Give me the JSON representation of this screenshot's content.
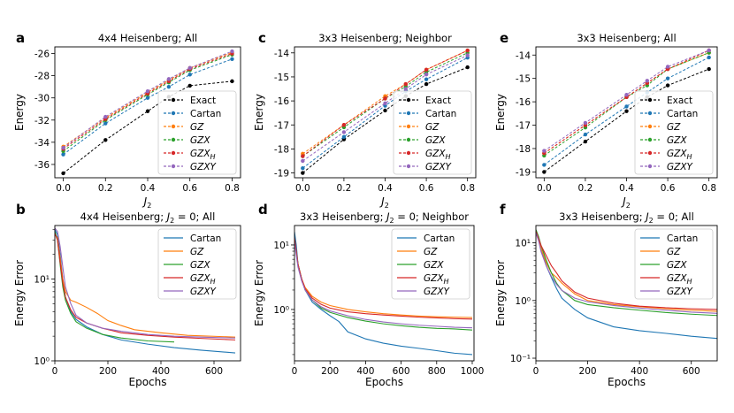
{
  "figure": {
    "panel_letters": [
      "a",
      "b",
      "c",
      "d",
      "e",
      "f"
    ]
  },
  "colors": {
    "Exact": "#000000",
    "Cartan": "#1f77b4",
    "GZ": "#ff7f0e",
    "GZX": "#2ca02c",
    "GZX_H": "#d62728",
    "GZXY": "#9467bd"
  },
  "chart_data": [
    {
      "panel": "a",
      "type": "line",
      "title": "4x4 Heisenberg; All",
      "xlabel": "J2",
      "ylabel": "Energy",
      "x": [
        0.0,
        0.2,
        0.4,
        0.5,
        0.6,
        0.8
      ],
      "xticks": [
        "0.0",
        "0.2",
        "0.4",
        "0.6",
        "0.8"
      ],
      "xtick_values": [
        0.0,
        0.2,
        0.4,
        0.6,
        0.8
      ],
      "yticks": [
        "-36",
        "-34",
        "-32",
        "-30",
        "-28",
        "-26"
      ],
      "ytick_values": [
        -36,
        -34,
        -32,
        -30,
        -28,
        -26
      ],
      "xlim": [
        -0.04,
        0.84
      ],
      "ylim": [
        -37.2,
        -25.4
      ],
      "legend": [
        "Exact",
        "Cartan",
        "GZ",
        "GZX",
        "GZX_H",
        "GZXY"
      ],
      "series": [
        {
          "name": "Exact",
          "values": [
            -36.8,
            -33.8,
            -31.2,
            -29.9,
            -28.9,
            -28.5
          ]
        },
        {
          "name": "Cartan",
          "values": [
            -35.1,
            -32.3,
            -30.0,
            -29.0,
            -27.9,
            -26.5
          ]
        },
        {
          "name": "GZ",
          "values": [
            -34.4,
            -31.8,
            -29.5,
            -28.4,
            -27.3,
            -25.9
          ]
        },
        {
          "name": "GZX",
          "values": [
            -34.8,
            -32.0,
            -29.7,
            -28.6,
            -27.5,
            -26.1
          ]
        },
        {
          "name": "GZX_H",
          "values": [
            -34.6,
            -31.9,
            -29.6,
            -28.5,
            -27.4,
            -26.0
          ]
        },
        {
          "name": "GZXY",
          "values": [
            -34.5,
            -31.7,
            -29.4,
            -28.3,
            -27.3,
            -25.8
          ]
        }
      ]
    },
    {
      "panel": "c",
      "type": "line",
      "title": "3x3 Heisenberg; Neighbor",
      "xlabel": "J2",
      "ylabel": "Energy",
      "x": [
        0.0,
        0.2,
        0.4,
        0.5,
        0.6,
        0.8
      ],
      "xticks": [
        "0.0",
        "0.2",
        "0.4",
        "0.6",
        "0.8"
      ],
      "xtick_values": [
        0.0,
        0.2,
        0.4,
        0.6,
        0.8
      ],
      "yticks": [
        "-19",
        "-18",
        "-17",
        "-16",
        "-15",
        "-14"
      ],
      "ytick_values": [
        -19,
        -18,
        -17,
        -16,
        -15,
        -14
      ],
      "xlim": [
        -0.04,
        0.84
      ],
      "ylim": [
        -19.2,
        -13.75
      ],
      "legend": [
        "Exact",
        "Cartan",
        "GZ",
        "GZX",
        "GZX_H",
        "GZXY"
      ],
      "series": [
        {
          "name": "Exact",
          "values": [
            -19.0,
            -17.6,
            -16.4,
            -15.8,
            -15.3,
            -14.6
          ]
        },
        {
          "name": "Cartan",
          "values": [
            -18.8,
            -17.5,
            -16.2,
            -15.6,
            -15.1,
            -14.2
          ]
        },
        {
          "name": "GZ",
          "values": [
            -18.2,
            -17.0,
            -15.8,
            -15.3,
            -14.7,
            -13.9
          ]
        },
        {
          "name": "GZX",
          "values": [
            -18.3,
            -17.1,
            -15.9,
            -15.4,
            -14.8,
            -14.0
          ]
        },
        {
          "name": "GZX_H",
          "values": [
            -18.3,
            -17.0,
            -15.9,
            -15.3,
            -14.7,
            -13.9
          ]
        },
        {
          "name": "GZXY",
          "values": [
            -18.5,
            -17.3,
            -16.1,
            -15.5,
            -14.9,
            -14.1
          ]
        }
      ]
    },
    {
      "panel": "e",
      "type": "line",
      "title": "3x3 Heisenberg; All",
      "xlabel": "J2",
      "ylabel": "Energy",
      "x": [
        0.0,
        0.2,
        0.4,
        0.5,
        0.6,
        0.8
      ],
      "xticks": [
        "0.0",
        "0.2",
        "0.4",
        "0.6",
        "0.8"
      ],
      "xtick_values": [
        0.0,
        0.2,
        0.4,
        0.6,
        0.8
      ],
      "yticks": [
        "-19",
        "-18",
        "-17",
        "-16",
        "-15",
        "-14"
      ],
      "ytick_values": [
        -19,
        -18,
        -17,
        -16,
        -15,
        -14
      ],
      "xlim": [
        -0.04,
        0.84
      ],
      "ylim": [
        -19.25,
        -13.65
      ],
      "legend": [
        "Exact",
        "Cartan",
        "GZ",
        "GZX",
        "GZX_H",
        "GZXY"
      ],
      "series": [
        {
          "name": "Exact",
          "values": [
            -19.0,
            -17.7,
            -16.4,
            -15.8,
            -15.3,
            -14.6
          ]
        },
        {
          "name": "Cartan",
          "values": [
            -18.7,
            -17.4,
            -16.2,
            -15.6,
            -15.0,
            -14.1
          ]
        },
        {
          "name": "GZ",
          "values": [
            -18.2,
            -17.0,
            -15.8,
            -15.2,
            -14.6,
            -13.9
          ]
        },
        {
          "name": "GZX",
          "values": [
            -18.3,
            -17.1,
            -15.8,
            -15.3,
            -14.6,
            -13.9
          ]
        },
        {
          "name": "GZX_H",
          "values": [
            -18.2,
            -17.0,
            -15.8,
            -15.2,
            -14.6,
            -13.8
          ]
        },
        {
          "name": "GZXY",
          "values": [
            -18.1,
            -16.9,
            -15.7,
            -15.1,
            -14.5,
            -13.8
          ]
        }
      ]
    },
    {
      "panel": "b",
      "type": "line",
      "yscale": "log",
      "title": "4x4 Heisenberg;  J2 = 0;  All",
      "xlabel": "Epochs",
      "ylabel": "Energy Error",
      "xticks": [
        "0",
        "200",
        "400",
        "600"
      ],
      "xtick_values": [
        0,
        200,
        400,
        600
      ],
      "yticks": [
        "10⁰",
        "10¹"
      ],
      "ytick_values": [
        1,
        10
      ],
      "xlim": [
        0,
        700
      ],
      "ylim": [
        1,
        45
      ],
      "legend": [
        "Cartan",
        "GZ",
        "GZX",
        "GZX_H",
        "GZXY"
      ],
      "series": [
        {
          "name": "Cartan",
          "x": [
            0,
            10,
            20,
            30,
            40,
            60,
            80,
            120,
            180,
            250,
            350,
            450,
            550,
            680
          ],
          "values": [
            40,
            35,
            20,
            10,
            6,
            4,
            3.2,
            2.6,
            2.1,
            1.8,
            1.6,
            1.45,
            1.35,
            1.25
          ]
        },
        {
          "name": "GZ",
          "x": [
            0,
            10,
            20,
            30,
            40,
            60,
            80,
            120,
            160,
            200,
            250,
            300,
            400,
            500,
            680
          ],
          "values": [
            35,
            32,
            18,
            10,
            7,
            5.5,
            5.2,
            4.5,
            3.8,
            3.1,
            2.7,
            2.4,
            2.2,
            2.05,
            1.95
          ]
        },
        {
          "name": "GZX",
          "x": [
            0,
            10,
            20,
            30,
            40,
            60,
            80,
            120,
            180,
            250,
            350,
            450
          ],
          "values": [
            38,
            30,
            15,
            8,
            5.5,
            3.8,
            3.0,
            2.5,
            2.1,
            1.9,
            1.75,
            1.7
          ]
        },
        {
          "name": "GZX_H",
          "x": [
            0,
            10,
            20,
            30,
            40,
            60,
            80,
            120,
            180,
            250,
            350,
            450,
            550,
            680
          ],
          "values": [
            36,
            30,
            16,
            9,
            6,
            4.2,
            3.4,
            2.9,
            2.5,
            2.2,
            2.05,
            1.95,
            1.88,
            1.8
          ]
        },
        {
          "name": "GZXY",
          "x": [
            0,
            10,
            20,
            30,
            40,
            60,
            80,
            120,
            180,
            250,
            350,
            450,
            550,
            680
          ],
          "values": [
            42,
            38,
            25,
            14,
            8,
            5,
            3.6,
            2.9,
            2.5,
            2.3,
            2.1,
            2.0,
            1.95,
            1.9
          ]
        }
      ]
    },
    {
      "panel": "d",
      "type": "line",
      "yscale": "log",
      "title": "3x3 Heisenberg;  J2 = 0;  Neighbor",
      "xlabel": "Epochs",
      "ylabel": "Energy Error",
      "xticks": [
        "0",
        "200",
        "400",
        "600",
        "800",
        "1000"
      ],
      "xtick_values": [
        0,
        200,
        400,
        600,
        800,
        1000
      ],
      "yticks": [
        "10⁰",
        "10¹"
      ],
      "ytick_values": [
        1,
        10
      ],
      "xlim": [
        0,
        1010
      ],
      "ylim": [
        0.16,
        20
      ],
      "legend": [
        "Cartan",
        "GZ",
        "GZX",
        "GZX_H",
        "GZXY"
      ],
      "series": [
        {
          "name": "Cartan",
          "x": [
            0,
            10,
            20,
            40,
            60,
            100,
            150,
            200,
            250,
            300,
            400,
            500,
            600,
            700,
            800,
            900,
            1000
          ],
          "values": [
            16,
            10,
            5,
            3,
            2,
            1.3,
            1.0,
            0.8,
            0.65,
            0.45,
            0.35,
            0.3,
            0.27,
            0.25,
            0.23,
            0.21,
            0.2
          ]
        },
        {
          "name": "GZ",
          "x": [
            0,
            10,
            20,
            40,
            60,
            100,
            150,
            200,
            300,
            400,
            500,
            600,
            700,
            800,
            900,
            1000
          ],
          "values": [
            12,
            8,
            5,
            3,
            2.2,
            1.6,
            1.3,
            1.15,
            1.0,
            0.92,
            0.86,
            0.82,
            0.79,
            0.77,
            0.76,
            0.75
          ]
        },
        {
          "name": "GZX",
          "x": [
            0,
            10,
            20,
            40,
            60,
            100,
            150,
            200,
            300,
            400,
            500,
            600,
            700,
            800,
            900,
            1000
          ],
          "values": [
            12,
            8,
            5,
            3,
            2,
            1.4,
            1.05,
            0.9,
            0.75,
            0.66,
            0.6,
            0.56,
            0.53,
            0.51,
            0.5,
            0.48
          ]
        },
        {
          "name": "GZX_H",
          "x": [
            0,
            10,
            20,
            40,
            60,
            100,
            150,
            200,
            300,
            400,
            500,
            600,
            700,
            800,
            900,
            1000
          ],
          "values": [
            13,
            8,
            5,
            3,
            2.1,
            1.5,
            1.2,
            1.05,
            0.92,
            0.86,
            0.82,
            0.79,
            0.76,
            0.74,
            0.72,
            0.71
          ]
        },
        {
          "name": "GZXY",
          "x": [
            0,
            10,
            20,
            40,
            60,
            100,
            150,
            200,
            300,
            400,
            500,
            600,
            700,
            800,
            900,
            1000
          ],
          "values": [
            11,
            7,
            4.5,
            2.8,
            2,
            1.4,
            1.1,
            0.95,
            0.8,
            0.7,
            0.64,
            0.6,
            0.57,
            0.55,
            0.53,
            0.52
          ]
        }
      ]
    },
    {
      "panel": "f",
      "type": "line",
      "yscale": "log",
      "title": "3x3 Heisenberg;  J2 = 0;  All",
      "xlabel": "Epochs",
      "ylabel": "Energy Error",
      "xticks": [
        "0",
        "200",
        "400",
        "600"
      ],
      "xtick_values": [
        0,
        200,
        400,
        600
      ],
      "yticks": [
        "10⁻¹",
        "10⁰",
        "10¹"
      ],
      "ytick_values": [
        0.1,
        1,
        10
      ],
      "xlim": [
        0,
        700
      ],
      "ylim": [
        0.09,
        20
      ],
      "legend": [
        "Cartan",
        "GZ",
        "GZX",
        "GZX_H",
        "GZXY"
      ],
      "series": [
        {
          "name": "Cartan",
          "x": [
            0,
            10,
            20,
            40,
            60,
            80,
            100,
            150,
            200,
            300,
            400,
            500,
            600,
            700
          ],
          "values": [
            16,
            12,
            8,
            4,
            2.5,
            1.6,
            1.1,
            0.7,
            0.5,
            0.35,
            0.3,
            0.27,
            0.24,
            0.22
          ]
        },
        {
          "name": "GZ",
          "x": [
            0,
            10,
            20,
            40,
            60,
            80,
            100,
            150,
            200,
            300,
            400,
            500,
            600,
            700
          ],
          "values": [
            15,
            11,
            8,
            4.5,
            3,
            2.5,
            2,
            1.3,
            1.0,
            0.85,
            0.78,
            0.72,
            0.68,
            0.65
          ]
        },
        {
          "name": "GZX",
          "x": [
            0,
            10,
            20,
            40,
            60,
            80,
            100,
            150,
            200,
            300,
            400,
            500,
            600,
            700
          ],
          "values": [
            17,
            13,
            9,
            5,
            3,
            2,
            1.5,
            1.0,
            0.85,
            0.75,
            0.68,
            0.62,
            0.58,
            0.55
          ]
        },
        {
          "name": "GZX_H",
          "x": [
            0,
            10,
            20,
            40,
            60,
            80,
            100,
            150,
            200,
            300,
            400,
            500,
            600,
            700
          ],
          "values": [
            16,
            12,
            9,
            6,
            4,
            3,
            2.2,
            1.4,
            1.1,
            0.9,
            0.8,
            0.75,
            0.72,
            0.7
          ]
        },
        {
          "name": "GZXY",
          "x": [
            0,
            10,
            20,
            40,
            60,
            80,
            100,
            150,
            200,
            300,
            400,
            500,
            600,
            700
          ],
          "values": [
            15,
            11,
            7,
            4,
            2.6,
            1.9,
            1.5,
            1.1,
            0.95,
            0.82,
            0.74,
            0.68,
            0.63,
            0.6
          ]
        }
      ]
    }
  ]
}
